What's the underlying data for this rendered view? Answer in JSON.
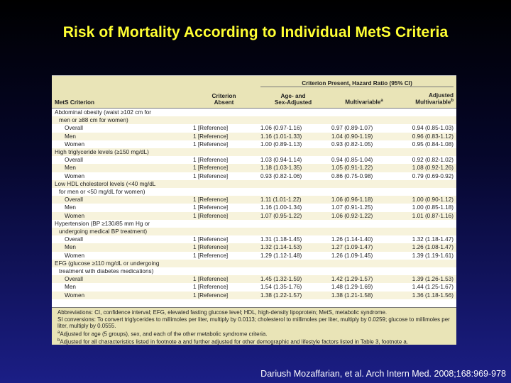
{
  "slide": {
    "title": "Risk of Mortality According to Individual MetS Criteria",
    "citation": "Dariush Mozaffarian, et al. Arch Intern Med. 2008;168:969-978"
  },
  "table": {
    "group_header": "Criterion Present, Hazard Ratio (95% CI)",
    "columns": {
      "criterion": "MetS Criterion",
      "absent_line1": "Criterion",
      "absent_line2": "Absent",
      "age_sex_line1": "Age- and",
      "age_sex_line2": "Sex-Adjusted",
      "multivariable": "Multivariable",
      "multivariable_sup": "a",
      "adjusted_line1": "Adjusted",
      "adjusted_line2": "Multivariable",
      "adjusted_sup": "b"
    },
    "groups": [
      {
        "label_lines": [
          "Abdominal obesity (waist ≥102 cm for",
          "men or ≥88 cm for women)"
        ],
        "rows": [
          {
            "label": "Overall",
            "absent": "1 [Reference]",
            "age_sex": "1.06 (0.97-1.16)",
            "multi": "0.97 (0.89-1.07)",
            "adjusted": "0.94 (0.85-1.03)"
          },
          {
            "label": "Men",
            "absent": "1 [Reference]",
            "age_sex": "1.16 (1.01-1.33)",
            "multi": "1.04 (0.90-1.19)",
            "adjusted": "0.96 (0.83-1.12)"
          },
          {
            "label": "Women",
            "absent": "1 [Reference]",
            "age_sex": "1.00 (0.89-1.13)",
            "multi": "0.93 (0.82-1.05)",
            "adjusted": "0.95 (0.84-1.08)"
          }
        ]
      },
      {
        "label_lines": [
          "High triglyceride levels (≥150 mg/dL)"
        ],
        "rows": [
          {
            "label": "Overall",
            "absent": "1 [Reference]",
            "age_sex": "1.03 (0.94-1.14)",
            "multi": "0.94 (0.85-1.04)",
            "adjusted": "0.92 (0.82-1.02)"
          },
          {
            "label": "Men",
            "absent": "1 [Reference]",
            "age_sex": "1.18 (1.03-1.35)",
            "multi": "1.05 (0.91-1.22)",
            "adjusted": "1.08 (0.92-1.26)"
          },
          {
            "label": "Women",
            "absent": "1 [Reference]",
            "age_sex": "0.93 (0.82-1.06)",
            "multi": "0.86 (0.75-0.98)",
            "adjusted": "0.79 (0.69-0.92)"
          }
        ]
      },
      {
        "label_lines": [
          "Low HDL cholesterol levels (<40 mg/dL",
          "for men or <50 mg/dL for women)"
        ],
        "rows": [
          {
            "label": "Overall",
            "absent": "1 [Reference]",
            "age_sex": "1.11 (1.01-1.22)",
            "multi": "1.06 (0.96-1.18)",
            "adjusted": "1.00 (0.90-1.12)"
          },
          {
            "label": "Men",
            "absent": "1 [Reference]",
            "age_sex": "1.16 (1.00-1.34)",
            "multi": "1.07 (0.91-1.25)",
            "adjusted": "1.00 (0.85-1.18)"
          },
          {
            "label": "Women",
            "absent": "1 [Reference]",
            "age_sex": "1.07 (0.95-1.22)",
            "multi": "1.06 (0.92-1.22)",
            "adjusted": "1.01 (0.87-1.16)"
          }
        ]
      },
      {
        "label_lines": [
          "Hypertension (BP ≥130/85 mm Hg or",
          "undergoing medical BP treatment)"
        ],
        "rows": [
          {
            "label": "Overall",
            "absent": "1 [Reference]",
            "age_sex": "1.31 (1.18-1.45)",
            "multi": "1.26 (1.14-1.40)",
            "adjusted": "1.32 (1.18-1.47)"
          },
          {
            "label": "Men",
            "absent": "1 [Reference]",
            "age_sex": "1.32 (1.14-1.53)",
            "multi": "1.27 (1.09-1.47)",
            "adjusted": "1.26 (1.08-1.47)"
          },
          {
            "label": "Women",
            "absent": "1 [Reference]",
            "age_sex": "1.29 (1.12-1.48)",
            "multi": "1.26 (1.09-1.45)",
            "adjusted": "1.39 (1.19-1.61)"
          }
        ]
      },
      {
        "label_lines": [
          "EFG (glucose ≥110 mg/dL or undergoing",
          "treatment with diabetes medications)"
        ],
        "rows": [
          {
            "label": "Overall",
            "absent": "1 [Reference]",
            "age_sex": "1.45 (1.32-1.59)",
            "multi": "1.42 (1.29-1.57)",
            "adjusted": "1.39 (1.26-1.53)"
          },
          {
            "label": "Men",
            "absent": "1 [Reference]",
            "age_sex": "1.54 (1.35-1.76)",
            "multi": "1.48 (1.29-1.69)",
            "adjusted": "1.44 (1.25-1.67)"
          },
          {
            "label": "Women",
            "absent": "1 [Reference]",
            "age_sex": "1.38 (1.22-1.57)",
            "multi": "1.38 (1.21-1.58)",
            "adjusted": "1.36 (1.18-1.56)"
          }
        ]
      }
    ],
    "footnotes": [
      "Abbreviations: CI, confidence interval; EFG, elevated fasting glucose level; HDL, high-density lipoprotein; MetS, metabolic syndrome.",
      "SI conversions: To convert triglycerides to millimoles per liter, multiply by 0.0113; cholesterol to millimoles per liter, multiply by 0.0259; glucose to millimoles per liter, multiply by 0.0555.",
      "Adjusted for age (5 groups), sex, and each of the other metabolic syndrome criteria.",
      "Adjusted for all characteristics listed in footnote a and further adjusted for other demographic and lifestyle factors listed in Table 3, footnote a."
    ],
    "footnote_marks": [
      "a",
      "b"
    ]
  },
  "colors": {
    "title": "#ffff33",
    "header_band": "#e9e4b7",
    "background_top": "#000000",
    "background_bottom": "#1b1e86"
  }
}
